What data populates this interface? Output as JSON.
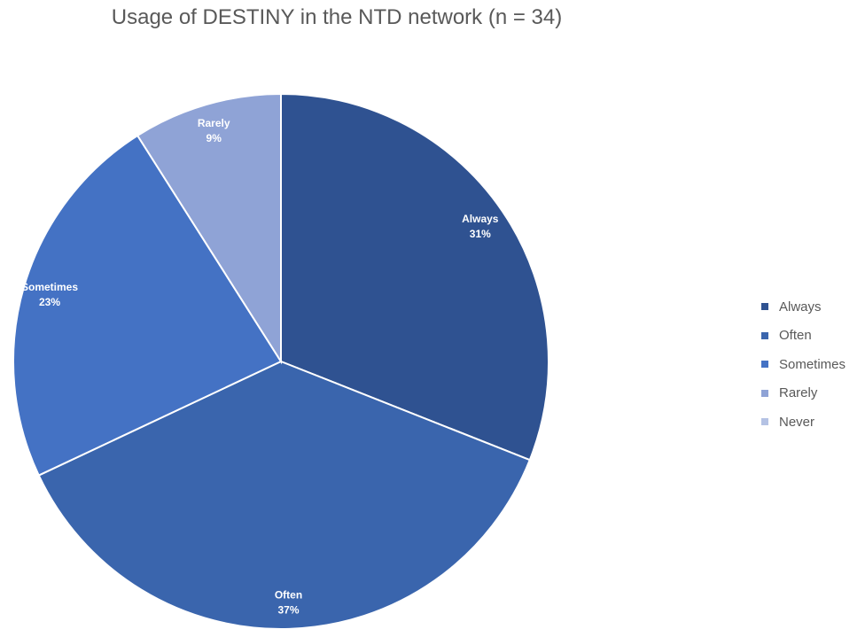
{
  "chart_data": {
    "type": "pie",
    "title": "Usage of DESTINY in the NTD network (n = 34)",
    "slices": [
      {
        "label": "Always",
        "percent_label": "31%",
        "value": 31,
        "color": "#2f5291"
      },
      {
        "label": "Often",
        "percent_label": "37%",
        "value": 37,
        "color": "#3a65ad"
      },
      {
        "label": "Sometimes",
        "percent_label": "23%",
        "value": 23,
        "color": "#4472c4"
      },
      {
        "label": "Rarely",
        "percent_label": "9%",
        "value": 9,
        "color": "#8fa3d6"
      },
      {
        "label": "Never",
        "percent_label": "",
        "value": 0,
        "color": "#b4c2e4"
      }
    ],
    "legend": {
      "position": "right",
      "entries": [
        "Always",
        "Often",
        "Sometimes",
        "Rarely",
        "Never"
      ]
    },
    "start_angle": "12 o'clock",
    "direction": "clockwise"
  }
}
